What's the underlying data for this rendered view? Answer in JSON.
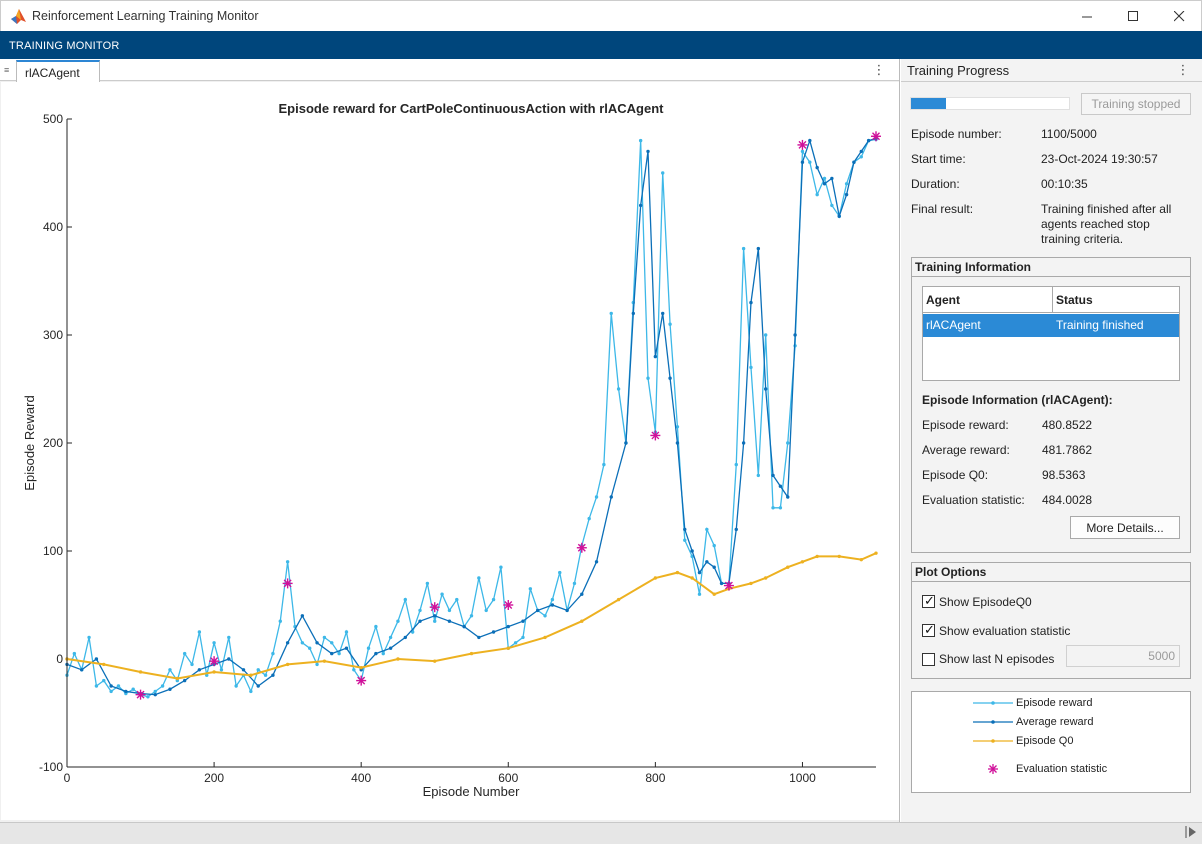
{
  "window": {
    "title": "Reinforcement Learning Training Monitor"
  },
  "ribbon": {
    "label": "TRAINING MONITOR"
  },
  "document_tab": {
    "label": "rlACAgent"
  },
  "right_pane": {
    "title": "Training Progress",
    "progress_fraction": 0.22,
    "stop_button_label": "Training stopped",
    "info": [
      {
        "label": "Episode number:",
        "value": "1100/5000"
      },
      {
        "label": "Start time:",
        "value": "23-Oct-2024 19:30:57"
      },
      {
        "label": "Duration:",
        "value": "00:10:35"
      },
      {
        "label": "Final result:",
        "value": "Training finished after all agents reached stop training criteria."
      }
    ]
  },
  "training_information": {
    "title": "Training Information",
    "table_headers": {
      "agent": "Agent",
      "status": "Status"
    },
    "rows": [
      {
        "agent": "rlACAgent",
        "status": "Training finished"
      }
    ],
    "episode_info_title": "Episode Information (rlACAgent):",
    "episode_info": [
      {
        "label": "Episode reward:",
        "value": "480.8522"
      },
      {
        "label": "Average reward:",
        "value": "481.7862"
      },
      {
        "label": "Episode Q0:",
        "value": "98.5363"
      },
      {
        "label": "Evaluation statistic:",
        "value": "484.0028"
      }
    ],
    "more_details_label": "More Details..."
  },
  "plot_options": {
    "title": "Plot Options",
    "show_episode_q0": {
      "label": "Show EpisodeQ0",
      "checked": true
    },
    "show_eval_statistic": {
      "label": "Show evaluation statistic",
      "checked": true
    },
    "show_last_n": {
      "label": "Show last N episodes",
      "checked": false,
      "value": "5000"
    }
  },
  "legend": {
    "episode_reward": "Episode reward",
    "average_reward": "Average reward",
    "episode_q0": "Episode Q0",
    "evaluation_statistic": "Evaluation statistic"
  },
  "colors": {
    "episode_reward": "#3db8e8",
    "average_reward": "#0b6fb8",
    "episode_q0": "#edb120",
    "evaluation": "#d0119a",
    "ribbon": "#00467c",
    "selection": "#2b8ad6"
  },
  "chart_data": {
    "type": "line",
    "title": "Episode reward for CartPoleContinuousAction with rlACAgent",
    "xlabel": "Episode Number",
    "ylabel": "Episode Reward",
    "xlim": [
      0,
      1100
    ],
    "ylim": [
      -100,
      500
    ],
    "xticks": [
      0,
      200,
      400,
      600,
      800,
      1000
    ],
    "yticks": [
      -100,
      0,
      100,
      200,
      300,
      400,
      500
    ],
    "grid": false,
    "series": [
      {
        "name": "Episode reward",
        "x": [
          0,
          10,
          20,
          30,
          40,
          50,
          60,
          70,
          80,
          90,
          100,
          110,
          120,
          130,
          140,
          150,
          160,
          170,
          180,
          190,
          200,
          210,
          220,
          230,
          240,
          250,
          260,
          270,
          280,
          290,
          300,
          310,
          320,
          330,
          340,
          350,
          360,
          370,
          380,
          390,
          400,
          410,
          420,
          430,
          440,
          450,
          460,
          470,
          480,
          490,
          500,
          510,
          520,
          530,
          540,
          550,
          560,
          570,
          580,
          590,
          600,
          610,
          620,
          630,
          640,
          650,
          660,
          670,
          680,
          690,
          700,
          710,
          720,
          730,
          740,
          750,
          760,
          770,
          780,
          790,
          800,
          810,
          820,
          830,
          840,
          850,
          860,
          870,
          880,
          890,
          900,
          910,
          920,
          930,
          940,
          950,
          960,
          970,
          980,
          990,
          1000,
          1010,
          1020,
          1030,
          1040,
          1050,
          1060,
          1070,
          1080,
          1090,
          1100
        ],
        "y": [
          -15,
          5,
          -10,
          20,
          -25,
          -20,
          -30,
          -25,
          -32,
          -28,
          -33,
          -35,
          -30,
          -25,
          -10,
          -20,
          5,
          -5,
          25,
          -15,
          15,
          -10,
          20,
          -25,
          -15,
          -30,
          -10,
          -15,
          5,
          35,
          90,
          30,
          15,
          10,
          -5,
          20,
          15,
          5,
          25,
          -10,
          -20,
          10,
          30,
          5,
          20,
          35,
          55,
          25,
          45,
          70,
          35,
          60,
          45,
          55,
          30,
          40,
          75,
          45,
          55,
          85,
          10,
          15,
          20,
          65,
          45,
          40,
          55,
          80,
          45,
          70,
          105,
          130,
          150,
          180,
          320,
          250,
          200,
          330,
          480,
          260,
          210,
          450,
          310,
          215,
          110,
          95,
          60,
          120,
          105,
          70,
          70,
          180,
          380,
          270,
          170,
          300,
          140,
          140,
          200,
          290,
          470,
          460,
          430,
          445,
          420,
          410,
          440,
          460,
          465,
          480,
          481
        ]
      },
      {
        "name": "Average reward",
        "x": [
          0,
          20,
          40,
          60,
          80,
          100,
          120,
          140,
          160,
          180,
          200,
          220,
          240,
          260,
          280,
          300,
          320,
          340,
          360,
          380,
          400,
          420,
          440,
          460,
          480,
          500,
          520,
          540,
          560,
          580,
          600,
          620,
          640,
          660,
          680,
          700,
          720,
          740,
          760,
          770,
          780,
          790,
          800,
          810,
          820,
          830,
          840,
          850,
          860,
          870,
          880,
          890,
          900,
          910,
          920,
          930,
          940,
          950,
          960,
          970,
          980,
          990,
          1000,
          1010,
          1020,
          1030,
          1040,
          1050,
          1060,
          1070,
          1080,
          1090,
          1100
        ],
        "y": [
          -5,
          -10,
          0,
          -25,
          -30,
          -32,
          -33,
          -28,
          -20,
          -10,
          -5,
          0,
          -10,
          -25,
          -15,
          15,
          40,
          15,
          5,
          10,
          -10,
          5,
          10,
          20,
          35,
          40,
          35,
          30,
          20,
          25,
          30,
          35,
          45,
          50,
          45,
          60,
          90,
          150,
          200,
          320,
          420,
          470,
          280,
          320,
          260,
          200,
          120,
          100,
          80,
          90,
          85,
          70,
          70,
          120,
          200,
          330,
          380,
          250,
          170,
          160,
          150,
          300,
          460,
          480,
          455,
          440,
          445,
          410,
          430,
          460,
          470,
          480,
          482
        ]
      },
      {
        "name": "Episode Q0",
        "x": [
          0,
          50,
          100,
          150,
          200,
          250,
          300,
          350,
          400,
          450,
          500,
          550,
          600,
          650,
          700,
          750,
          800,
          830,
          850,
          880,
          900,
          930,
          950,
          980,
          1000,
          1020,
          1050,
          1080,
          1100
        ],
        "y": [
          0,
          -5,
          -12,
          -18,
          -12,
          -15,
          -5,
          -2,
          -8,
          0,
          -2,
          5,
          10,
          20,
          35,
          55,
          75,
          80,
          75,
          60,
          65,
          70,
          75,
          85,
          90,
          95,
          95,
          92,
          98
        ]
      },
      {
        "name": "Evaluation statistic",
        "x": [
          100,
          200,
          300,
          400,
          500,
          600,
          700,
          800,
          900,
          1000,
          1100
        ],
        "y": [
          -33,
          -2,
          70,
          -20,
          48,
          50,
          103,
          207,
          68,
          476,
          484
        ]
      }
    ]
  }
}
